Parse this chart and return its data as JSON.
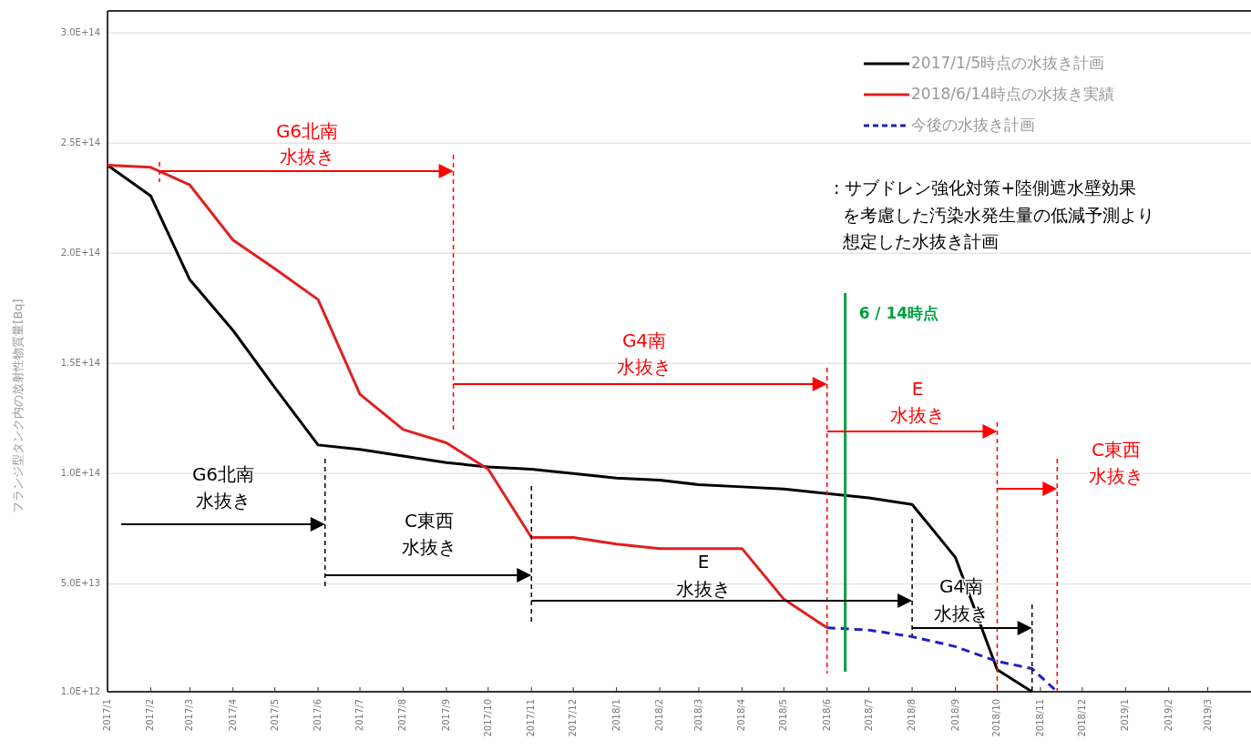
{
  "chart_data": {
    "type": "line",
    "ylabel": "フランジ型タンク内の放射性物質量[Bq]",
    "xlim": [
      "2017-01-01",
      "2019-04-01"
    ],
    "xticks": [
      {
        "value": "2017-01-01",
        "label": "2017/1"
      },
      {
        "value": "2017-02-01",
        "label": "2017/2"
      },
      {
        "value": "2017-03-01",
        "label": "2017/3"
      },
      {
        "value": "2017-04-01",
        "label": "2017/4"
      },
      {
        "value": "2017-05-01",
        "label": "2017/5"
      },
      {
        "value": "2017-06-01",
        "label": "2017/6"
      },
      {
        "value": "2017-07-01",
        "label": "2017/7"
      },
      {
        "value": "2017-08-01",
        "label": "2017/8"
      },
      {
        "value": "2017-09-01",
        "label": "2017/9"
      },
      {
        "value": "2017-10-01",
        "label": "2017/10"
      },
      {
        "value": "2017-11-01",
        "label": "2017/11"
      },
      {
        "value": "2017-12-01",
        "label": "2017/12"
      },
      {
        "value": "2018-01-01",
        "label": "2018/1"
      },
      {
        "value": "2018-02-01",
        "label": "2018/2"
      },
      {
        "value": "2018-03-01",
        "label": "2018/3"
      },
      {
        "value": "2018-04-01",
        "label": "2018/4"
      },
      {
        "value": "2018-05-01",
        "label": "2018/5"
      },
      {
        "value": "2018-06-01",
        "label": "2018/6"
      },
      {
        "value": "2018-07-01",
        "label": "2018/7"
      },
      {
        "value": "2018-08-01",
        "label": "2018/8"
      },
      {
        "value": "2018-09-01",
        "label": "2018/9"
      },
      {
        "value": "2018-10-01",
        "label": "2018/10"
      },
      {
        "value": "2018-11-01",
        "label": "2018/11"
      },
      {
        "value": "2018-12-01",
        "label": "2018/12"
      },
      {
        "value": "2019-01-01",
        "label": "2019/1"
      },
      {
        "value": "2019-02-01",
        "label": "2019/2"
      },
      {
        "value": "2019-03-01",
        "label": "2019/3"
      }
    ],
    "ylim": [
      1000000000000.0,
      310000000000000.0
    ],
    "yticks": [
      {
        "value": 1000000000000.0,
        "label": "1.0E+12"
      },
      {
        "value": 50000000000000.0,
        "label": "5.0E+13"
      },
      {
        "value": 100000000000000.0,
        "label": "1.0E+14"
      },
      {
        "value": 150000000000000.0,
        "label": "1.5E+14"
      },
      {
        "value": 200000000000000.0,
        "label": "2.0E+14"
      },
      {
        "value": 250000000000000.0,
        "label": "2.5E+14"
      },
      {
        "value": 300000000000000.0,
        "label": "3.0E+14"
      }
    ],
    "grid": "y",
    "legend": "top right",
    "series": [
      {
        "name": "2017/1/5時点の水抜き計画",
        "color": "#000000",
        "line_style": "solid",
        "x": [
          "2017-01-01",
          "2017-02-01",
          "2017-03-01",
          "2017-04-01",
          "2017-05-01",
          "2017-06-01",
          "2017-07-01",
          "2017-08-01",
          "2017-09-01",
          "2017-10-01",
          "2017-11-01",
          "2017-12-01",
          "2018-01-01",
          "2018-02-01",
          "2018-03-01",
          "2018-04-01",
          "2018-05-01",
          "2018-06-01",
          "2018-07-01",
          "2018-08-01",
          "2018-09-01",
          "2018-10-01",
          "2018-10-26"
        ],
        "values": [
          240000000000000.0,
          226000000000000.0,
          188000000000000.0,
          165000000000000.0,
          139000000000000.0,
          113000000000000.0,
          111000000000000.0,
          108000000000000.0,
          105000000000000.0,
          103000000000000.0,
          102000000000000.0,
          100000000000000.0,
          98000000000000.0,
          97000000000000.0,
          95000000000000.0,
          94000000000000.0,
          93000000000000.0,
          91000000000000.0,
          89000000000000.0,
          86000000000000.0,
          62000000000000.0,
          11000000000000.0,
          1000000000000.0
        ]
      },
      {
        "name": "2018/6/14時点の水抜き実績",
        "color": "#e02020",
        "line_style": "solid",
        "x": [
          "2017-01-01",
          "2017-02-01",
          "2017-03-01",
          "2017-04-01",
          "2017-05-01",
          "2017-06-01",
          "2017-07-01",
          "2017-08-01",
          "2017-09-01",
          "2017-10-01",
          "2017-11-01",
          "2017-12-01",
          "2018-01-01",
          "2018-02-01",
          "2018-03-01",
          "2018-04-01",
          "2018-05-01",
          "2018-06-01"
        ],
        "values": [
          240000000000000.0,
          239000000000000.0,
          231000000000000.0,
          206000000000000.0,
          193000000000000.0,
          179000000000000.0,
          136000000000000.0,
          120000000000000.0,
          114000000000000.0,
          102000000000000.0,
          71000000000000.0,
          71000000000000.0,
          68000000000000.0,
          66000000000000.0,
          66000000000000.0,
          66000000000000.0,
          43000000000000.0,
          30000000000000.0
        ]
      },
      {
        "name": "今後の水抜き計画",
        "color": "#2020c0",
        "line_style": "dashed",
        "x": [
          "2018-06-01",
          "2018-07-01",
          "2018-08-01",
          "2018-09-01",
          "2018-10-01",
          "2018-10-26",
          "2018-11-13"
        ],
        "values": [
          30000000000000.0,
          29000000000000.0,
          26000000000000.0,
          21500000000000.0,
          14800000000000.0,
          11500000000000.0,
          1000000000000.0
        ]
      }
    ],
    "ref_lines": [
      {
        "axis": "x",
        "value": "2018-06-14",
        "label": "6 / 14時点",
        "color": "#00a040",
        "line_style": "solid"
      },
      {
        "axis": "x",
        "value": "2017-09-06",
        "color": "#ff0000",
        "line_style": "dashed"
      },
      {
        "axis": "x",
        "value": "2018-06-01",
        "color": "#ff0000",
        "line_style": "dashed"
      },
      {
        "axis": "x",
        "value": "2018-10-01",
        "color": "#ff0000",
        "line_style": "dashed"
      },
      {
        "axis": "x",
        "value": "2018-11-13",
        "color": "#ff0000",
        "line_style": "dashed"
      },
      {
        "axis": "x",
        "value": "2017-06-06",
        "color": "#000000",
        "line_style": "dashed"
      },
      {
        "axis": "x",
        "value": "2017-11-01",
        "color": "#000000",
        "line_style": "dashed"
      },
      {
        "axis": "x",
        "value": "2018-08-01",
        "color": "#000000",
        "line_style": "dashed"
      },
      {
        "axis": "x",
        "value": "2018-10-26",
        "color": "#000000",
        "line_style": "dashed"
      }
    ],
    "annotations": [
      "G6北南",
      "水抜き",
      "G4南",
      "水抜き",
      "E",
      "水抜き",
      "C東西",
      "水抜き",
      "G6北南",
      "水抜き",
      "C東西",
      "水抜き",
      "E",
      "水抜き",
      "G4南",
      "水抜き",
      ": サブドレン強化対策+陸側遮水壁効果",
      "を考慮した汚染水発生量の低減予測より",
      "想定した水抜き計画"
    ]
  }
}
